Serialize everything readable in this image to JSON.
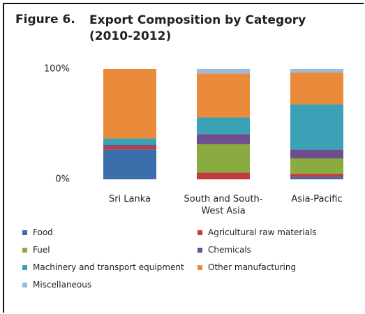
{
  "chart_data": {
    "type": "stacked_bar",
    "figure_label": "Figure 6.",
    "title": "Export Composition by Category (2010-2012)",
    "categories": [
      "Sri Lanka",
      "South and South-West Asia",
      "Asia-Pacific"
    ],
    "series": [
      {
        "name": "Food",
        "color": "#3b6eaa",
        "values": [
          27,
          0,
          2
        ]
      },
      {
        "name": "Agricultural raw materials",
        "color": "#c23b3d",
        "values": [
          3,
          6,
          3
        ]
      },
      {
        "name": "Fuel",
        "color": "#8aab3f",
        "values": [
          0,
          26,
          14
        ]
      },
      {
        "name": "Chemicals",
        "color": "#6f4e90",
        "values": [
          1,
          9,
          8
        ]
      },
      {
        "name": "Machinery and transport equipment",
        "color": "#3ba1b6",
        "values": [
          6,
          15,
          41
        ]
      },
      {
        "name": "Other manufacturing",
        "color": "#e98b3b",
        "values": [
          63,
          40,
          29
        ]
      },
      {
        "name": "Miscellaneous",
        "color": "#9eb9de",
        "values": [
          0,
          4,
          3
        ]
      }
    ],
    "ylim": [
      0,
      100
    ],
    "yticks": [
      {
        "value": 0,
        "label": "0%"
      },
      {
        "value": 100,
        "label": "100%"
      }
    ]
  }
}
